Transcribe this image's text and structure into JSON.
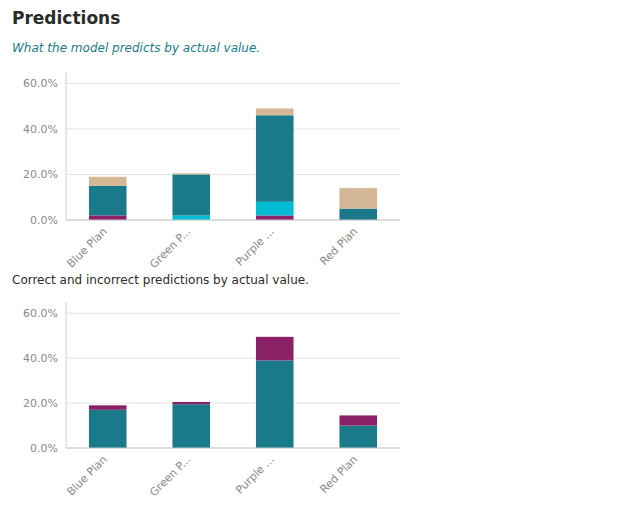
{
  "chart_data": [
    {
      "type": "bar",
      "stacked": true,
      "grid": true,
      "title": "Predictions",
      "subtitle": "What the model predicts by actual value.",
      "categories": [
        "Blue Plan",
        "Green P...",
        "Purple ...",
        "Red Plan"
      ],
      "series": [
        {
          "color": "#8B2167",
          "values": [
            2.0,
            0.0,
            2.0,
            0.0
          ]
        },
        {
          "color": "#00BCD4",
          "values": [
            0.0,
            2.0,
            6.0,
            0.0
          ]
        },
        {
          "color": "#1A7A8A",
          "values": [
            13.0,
            18.0,
            38.0,
            5.0
          ]
        },
        {
          "color": "#D4B896",
          "values": [
            4.0,
            0.5,
            3.0,
            9.0
          ]
        }
      ],
      "ylim": [
        0,
        65
      ],
      "yticks": [
        {
          "value": 0,
          "label": "0.0%"
        },
        {
          "value": 20,
          "label": "20.0%"
        },
        {
          "value": 40,
          "label": "40.0%"
        },
        {
          "value": 60,
          "label": "60.0%"
        }
      ]
    },
    {
      "type": "bar",
      "stacked": true,
      "grid": true,
      "subtitle": "Correct and incorrect predictions by actual value.",
      "categories": [
        "Blue Plan",
        "Green P...",
        "Purple ...",
        "Red Plan"
      ],
      "series": [
        {
          "color": "#1A7A8A",
          "values": [
            17.0,
            19.5,
            39.0,
            10.0
          ]
        },
        {
          "color": "#8B2167",
          "values": [
            2.0,
            1.0,
            10.5,
            4.5
          ]
        }
      ],
      "ylim": [
        0,
        65
      ],
      "yticks": [
        {
          "value": 0,
          "label": "0.0%"
        },
        {
          "value": 20,
          "label": "20.0%"
        },
        {
          "value": 40,
          "label": "40.0%"
        },
        {
          "value": 60,
          "label": "60.0%"
        }
      ]
    }
  ]
}
